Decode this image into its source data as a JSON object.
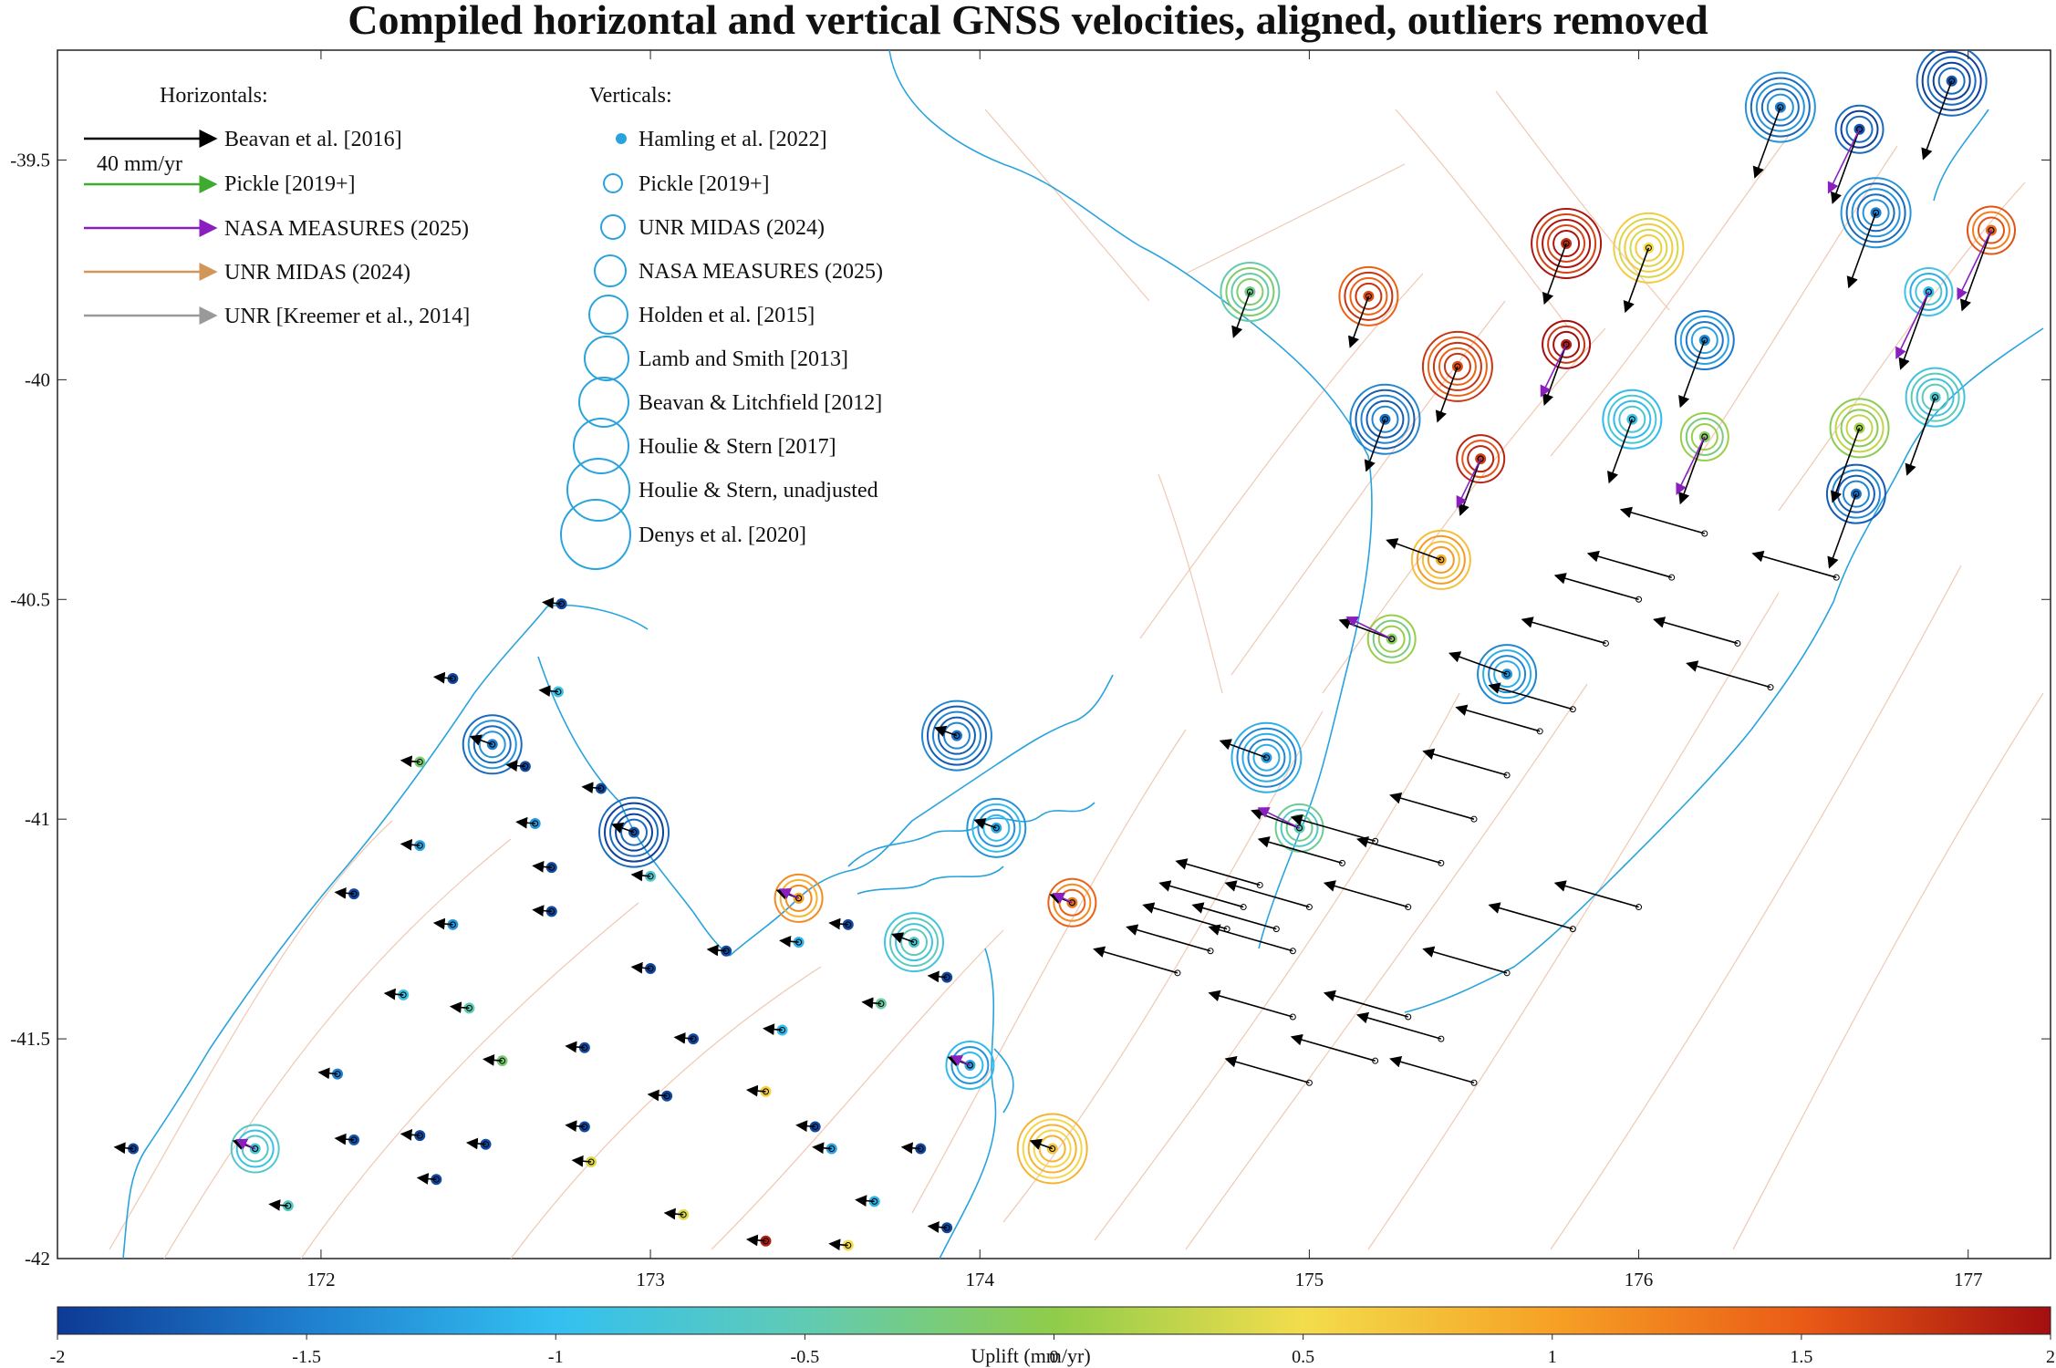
{
  "title": "Compiled horizontal and vertical GNSS velocities, aligned, outliers removed",
  "map": {
    "lon_range": [
      171.2,
      177.25
    ],
    "lat_range": [
      -42.0,
      -39.25
    ],
    "x_ticks": [
      "172",
      "173",
      "174",
      "175",
      "176",
      "177"
    ],
    "y_ticks": [
      "-39.5",
      "-40",
      "-40.5",
      "-41",
      "-41.5",
      "-42"
    ],
    "x_tick_values": [
      172,
      173,
      174,
      175,
      176,
      177
    ],
    "y_tick_values": [
      -39.5,
      -40,
      -40.5,
      -41,
      -41.5,
      -42
    ],
    "coast_color": "#29a3dd",
    "fault_color": "#f0c8b4"
  },
  "legend_horizontal": {
    "title": "Horizontals:",
    "scale_label": "40 mm/yr",
    "items": [
      {
        "label": "Beavan et al. [2016]",
        "color": "#000000"
      },
      {
        "label": "Pickle [2019+]",
        "color": "#3cab2e"
      },
      {
        "label": "NASA MEASURES (2025)",
        "color": "#8a1fbf"
      },
      {
        "label": "UNR MIDAS (2024)",
        "color": "#d2955a"
      },
      {
        "label": "UNR [Kreemer et al., 2014]",
        "color": "#999999"
      }
    ]
  },
  "legend_vertical": {
    "title": "Verticals:",
    "items": [
      {
        "label": "Hamling et al. [2022]"
      },
      {
        "label": "Pickle [2019+]"
      },
      {
        "label": "UNR MIDAS (2024)"
      },
      {
        "label": "NASA MEASURES (2025)"
      },
      {
        "label": "Holden et al. [2015]"
      },
      {
        "label": "Lamb and Smith [2013]"
      },
      {
        "label": "Beavan & Litchfield [2012]"
      },
      {
        "label": "Houlie & Stern [2017]"
      },
      {
        "label": "Houlie & Stern, unadjusted"
      },
      {
        "label": "Denys et al. [2020]"
      }
    ]
  },
  "colorbar": {
    "label": "Uplift (mm/yr)",
    "range": [
      -2,
      2
    ],
    "ticks": [
      "-2",
      "-1.5",
      "-1",
      "-0.5",
      "0",
      "0.5",
      "1",
      "1.5",
      "2"
    ],
    "tick_values": [
      -2,
      -1.5,
      -1,
      -0.5,
      0,
      0.5,
      1,
      1.5,
      2
    ],
    "colors": [
      "#0d3a94",
      "#1f7fcf",
      "#33c0f0",
      "#60cbb4",
      "#8fcc4a",
      "#f3dd4c",
      "#f6a125",
      "#ea5b16",
      "#a30f0f"
    ]
  },
  "chart_data": {
    "type": "scatter",
    "title": "Compiled horizontal and vertical GNSS velocities, aligned, outliers removed",
    "xlim": [
      171.2,
      177.25
    ],
    "ylim": [
      -42.0,
      -39.25
    ],
    "colorbar_label": "Uplift (mm/yr)",
    "clim": [
      -2,
      2
    ],
    "stations_verticals_only": [
      {
        "lon": 171.43,
        "lat": -41.75,
        "uplift": -1.9
      },
      {
        "lon": 171.9,
        "lat": -41.88,
        "uplift": -0.6
      },
      {
        "lon": 172.05,
        "lat": -41.58,
        "uplift": -1.5
      },
      {
        "lon": 172.1,
        "lat": -41.73,
        "uplift": -1.8
      },
      {
        "lon": 172.1,
        "lat": -41.17,
        "uplift": -1.9
      },
      {
        "lon": 172.25,
        "lat": -41.4,
        "uplift": -0.9
      },
      {
        "lon": 172.3,
        "lat": -41.72,
        "uplift": -1.9
      },
      {
        "lon": 172.35,
        "lat": -41.82,
        "uplift": -1.9
      },
      {
        "lon": 172.4,
        "lat": -41.24,
        "uplift": -1.3
      },
      {
        "lon": 172.4,
        "lat": -40.68,
        "uplift": -1.9
      },
      {
        "lon": 172.3,
        "lat": -41.06,
        "uplift": -1.2
      },
      {
        "lon": 172.3,
        "lat": -40.87,
        "uplift": -0.2
      },
      {
        "lon": 172.45,
        "lat": -41.43,
        "uplift": -0.5
      },
      {
        "lon": 172.55,
        "lat": -41.55,
        "uplift": -0.2
      },
      {
        "lon": 172.5,
        "lat": -41.74,
        "uplift": -1.9
      },
      {
        "lon": 172.62,
        "lat": -40.88,
        "uplift": -1.9
      },
      {
        "lon": 172.65,
        "lat": -41.01,
        "uplift": -1.3
      },
      {
        "lon": 172.7,
        "lat": -41.11,
        "uplift": -1.9
      },
      {
        "lon": 172.7,
        "lat": -41.21,
        "uplift": -1.9
      },
      {
        "lon": 172.73,
        "lat": -40.51,
        "uplift": -1.9
      },
      {
        "lon": 172.72,
        "lat": -40.71,
        "uplift": -0.9
      },
      {
        "lon": 172.8,
        "lat": -41.52,
        "uplift": -1.9
      },
      {
        "lon": 172.8,
        "lat": -41.7,
        "uplift": -1.9
      },
      {
        "lon": 172.82,
        "lat": -41.78,
        "uplift": 0.4
      },
      {
        "lon": 172.85,
        "lat": -40.93,
        "uplift": -1.9
      },
      {
        "lon": 173.0,
        "lat": -41.13,
        "uplift": -0.7
      },
      {
        "lon": 173.0,
        "lat": -41.34,
        "uplift": -1.9
      },
      {
        "lon": 173.05,
        "lat": -41.63,
        "uplift": -1.9
      },
      {
        "lon": 173.1,
        "lat": -41.9,
        "uplift": 0.4
      },
      {
        "lon": 173.13,
        "lat": -41.5,
        "uplift": -1.9
      },
      {
        "lon": 173.23,
        "lat": -41.3,
        "uplift": -1.9
      },
      {
        "lon": 173.35,
        "lat": -41.62,
        "uplift": 0.6
      },
      {
        "lon": 173.35,
        "lat": -41.96,
        "uplift": 1.9
      },
      {
        "lon": 173.4,
        "lat": -41.48,
        "uplift": -1.0
      },
      {
        "lon": 173.45,
        "lat": -41.28,
        "uplift": -1.1
      },
      {
        "lon": 173.5,
        "lat": -41.7,
        "uplift": -1.9
      },
      {
        "lon": 173.55,
        "lat": -41.75,
        "uplift": -1.2
      },
      {
        "lon": 173.6,
        "lat": -41.97,
        "uplift": 0.5
      },
      {
        "lon": 173.6,
        "lat": -41.24,
        "uplift": -1.9
      },
      {
        "lon": 173.7,
        "lat": -41.42,
        "uplift": -0.4
      },
      {
        "lon": 173.68,
        "lat": -41.87,
        "uplift": -1.1
      },
      {
        "lon": 173.82,
        "lat": -41.75,
        "uplift": -1.9
      },
      {
        "lon": 173.9,
        "lat": -41.36,
        "uplift": -1.9
      },
      {
        "lon": 173.9,
        "lat": -41.93,
        "uplift": -1.9
      }
    ],
    "stations_with_rings": [
      {
        "lon": 171.8,
        "lat": -41.75,
        "uplift": -0.8
      },
      {
        "lon": 172.52,
        "lat": -40.83,
        "uplift": -1.5
      },
      {
        "lon": 172.95,
        "lat": -41.03,
        "uplift": -1.8
      },
      {
        "lon": 173.45,
        "lat": -41.18,
        "uplift": 1.0
      },
      {
        "lon": 173.8,
        "lat": -41.28,
        "uplift": -0.7
      },
      {
        "lon": 173.93,
        "lat": -40.81,
        "uplift": -1.6
      },
      {
        "lon": 173.97,
        "lat": -41.56,
        "uplift": -1.2
      },
      {
        "lon": 174.05,
        "lat": -41.02,
        "uplift": -1.2
      },
      {
        "lon": 174.22,
        "lat": -41.75,
        "uplift": 0.7
      },
      {
        "lon": 174.28,
        "lat": -41.19,
        "uplift": 1.3
      },
      {
        "lon": 174.82,
        "lat": -39.8,
        "uplift": -0.3
      },
      {
        "lon": 174.87,
        "lat": -40.86,
        "uplift": -1.3
      },
      {
        "lon": 174.97,
        "lat": -41.02,
        "uplift": -0.5
      },
      {
        "lon": 175.18,
        "lat": -39.81,
        "uplift": 1.6
      },
      {
        "lon": 175.23,
        "lat": -40.09,
        "uplift": -1.6
      },
      {
        "lon": 175.25,
        "lat": -40.59,
        "uplift": -0.1
      },
      {
        "lon": 175.4,
        "lat": -40.41,
        "uplift": 0.9
      },
      {
        "lon": 175.45,
        "lat": -39.97,
        "uplift": 1.6
      },
      {
        "lon": 175.52,
        "lat": -40.18,
        "uplift": 1.7
      },
      {
        "lon": 175.6,
        "lat": -40.67,
        "uplift": -1.3
      },
      {
        "lon": 175.78,
        "lat": -39.69,
        "uplift": 1.8
      },
      {
        "lon": 175.78,
        "lat": -39.92,
        "uplift": 1.9
      },
      {
        "lon": 175.98,
        "lat": -40.09,
        "uplift": -0.9
      },
      {
        "lon": 176.03,
        "lat": -39.7,
        "uplift": 0.5
      },
      {
        "lon": 176.2,
        "lat": -40.13,
        "uplift": -0.1
      },
      {
        "lon": 176.2,
        "lat": -39.91,
        "uplift": -1.4
      },
      {
        "lon": 176.43,
        "lat": -39.38,
        "uplift": -1.5
      },
      {
        "lon": 176.67,
        "lat": -39.43,
        "uplift": -1.8
      },
      {
        "lon": 176.67,
        "lat": -40.11,
        "uplift": 0.1
      },
      {
        "lon": 176.72,
        "lat": -39.62,
        "uplift": -1.5
      },
      {
        "lon": 176.88,
        "lat": -39.8,
        "uplift": -1.0
      },
      {
        "lon": 176.9,
        "lat": -40.04,
        "uplift": -0.7
      },
      {
        "lon": 176.95,
        "lat": -39.32,
        "uplift": -1.8
      },
      {
        "lon": 177.07,
        "lat": -39.66,
        "uplift": 1.4
      },
      {
        "lon": 176.66,
        "lat": -40.26,
        "uplift": -1.6
      }
    ]
  }
}
